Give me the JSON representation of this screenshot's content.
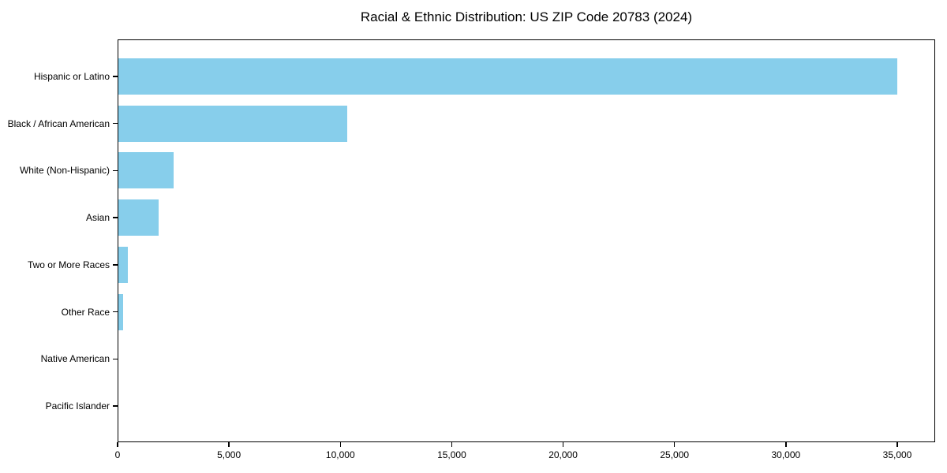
{
  "chart_data": {
    "type": "bar",
    "orientation": "horizontal",
    "title": "Racial & Ethnic Distribution: US ZIP Code 20783 (2024)",
    "categories": [
      "Hispanic or Latino",
      "Black / African American",
      "White (Non-Hispanic)",
      "Asian",
      "Two or More Races",
      "Other Race",
      "Native American",
      "Pacific Islander"
    ],
    "values": [
      35000,
      10300,
      2500,
      1850,
      450,
      250,
      50,
      20
    ],
    "xlabel": "",
    "ylabel": "",
    "xlim": [
      0,
      36700
    ],
    "xticks": [
      0,
      5000,
      10000,
      15000,
      20000,
      25000,
      30000,
      35000
    ],
    "xtick_labels": [
      "0",
      "5,000",
      "10,000",
      "15,000",
      "20,000",
      "25,000",
      "30,000",
      "35,000"
    ],
    "bar_color": "#87CEEB",
    "axis_color": "#000000",
    "background_color": "#ffffff",
    "grid": false,
    "legend": null
  }
}
